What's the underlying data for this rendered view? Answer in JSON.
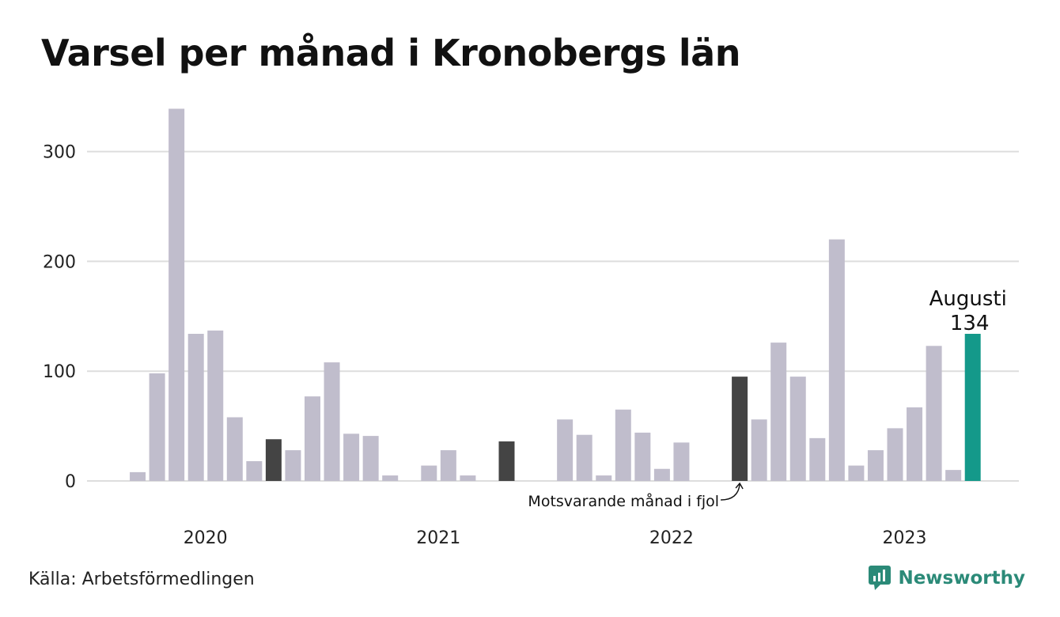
{
  "title": "Varsel per månad i Kronobergs län",
  "source": "Källa: Arbetsförmedlingen",
  "brand": {
    "name": "Newsworthy",
    "icon": "newsworthy-logo-icon"
  },
  "colors": {
    "bar": "#c0bdcc",
    "highlight_previous_year": "#444444",
    "current": "#14998a",
    "grid": "#dddddd",
    "brand": "#2b8a78"
  },
  "chart_data": {
    "type": "bar",
    "title": "Varsel per månad i Kronobergs län",
    "xlabel": "",
    "ylabel": "",
    "ylim": [
      0,
      340
    ],
    "yticks": [
      0,
      100,
      200,
      300
    ],
    "grid": true,
    "x_year_labels": [
      "2020",
      "2021",
      "2022",
      "2023"
    ],
    "start_month": "2019-09",
    "values": [
      0,
      8,
      98,
      339,
      134,
      137,
      58,
      18,
      38,
      28,
      77,
      108,
      43,
      41,
      5,
      0,
      14,
      28,
      5,
      0,
      36,
      0,
      0,
      56,
      42,
      5,
      65,
      44,
      11,
      35,
      0,
      0,
      95,
      56,
      126,
      95,
      39,
      220,
      14,
      28,
      48,
      67,
      123,
      10,
      134
    ],
    "highlight_previous_year_indices": [
      8,
      20,
      32
    ],
    "current_index": 44,
    "annotation": "Motsvarande månad i fjol",
    "callout": {
      "label": "Augusti",
      "value": "134"
    }
  }
}
